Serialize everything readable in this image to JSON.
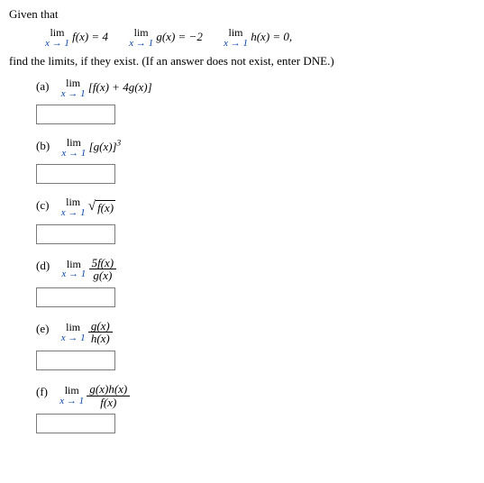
{
  "given_label": "Given that",
  "limits_given": {
    "f": {
      "sub": "x → 1",
      "expr": "f(x) = 4"
    },
    "g": {
      "sub": "x → 1",
      "expr": "g(x) = −2"
    },
    "h": {
      "sub": "x → 1",
      "expr": "h(x) = 0,"
    }
  },
  "find_line": "find the limits, if they exist. (If an answer does not exist, enter DNE.)",
  "lim_word": "lim",
  "parts": {
    "a": {
      "label": "(a)",
      "sub": "x → 1",
      "rhs": "[f(x) + 4g(x)]"
    },
    "b": {
      "label": "(b)",
      "sub": "x → 1",
      "rhs": "[g(x)]",
      "sup": "3"
    },
    "c": {
      "label": "(c)",
      "sub": "x → 1",
      "rhs_inside_sqrt": "f(x)"
    },
    "d": {
      "label": "(d)",
      "sub": "x → 1",
      "num": "5f(x)",
      "den": "g(x)"
    },
    "e": {
      "label": "(e)",
      "sub": "x → 1",
      "num": "g(x)",
      "den": "h(x)"
    },
    "f": {
      "label": "(f)",
      "sub": "x → 1",
      "num": "g(x)h(x)",
      "den": "f(x)"
    }
  },
  "colors": {
    "link_blue": "#0645ad",
    "text": "#000000",
    "input_border": "#7a7a7a"
  },
  "font_sizes": {
    "body": 13,
    "subscript": 11,
    "sup": 9
  }
}
